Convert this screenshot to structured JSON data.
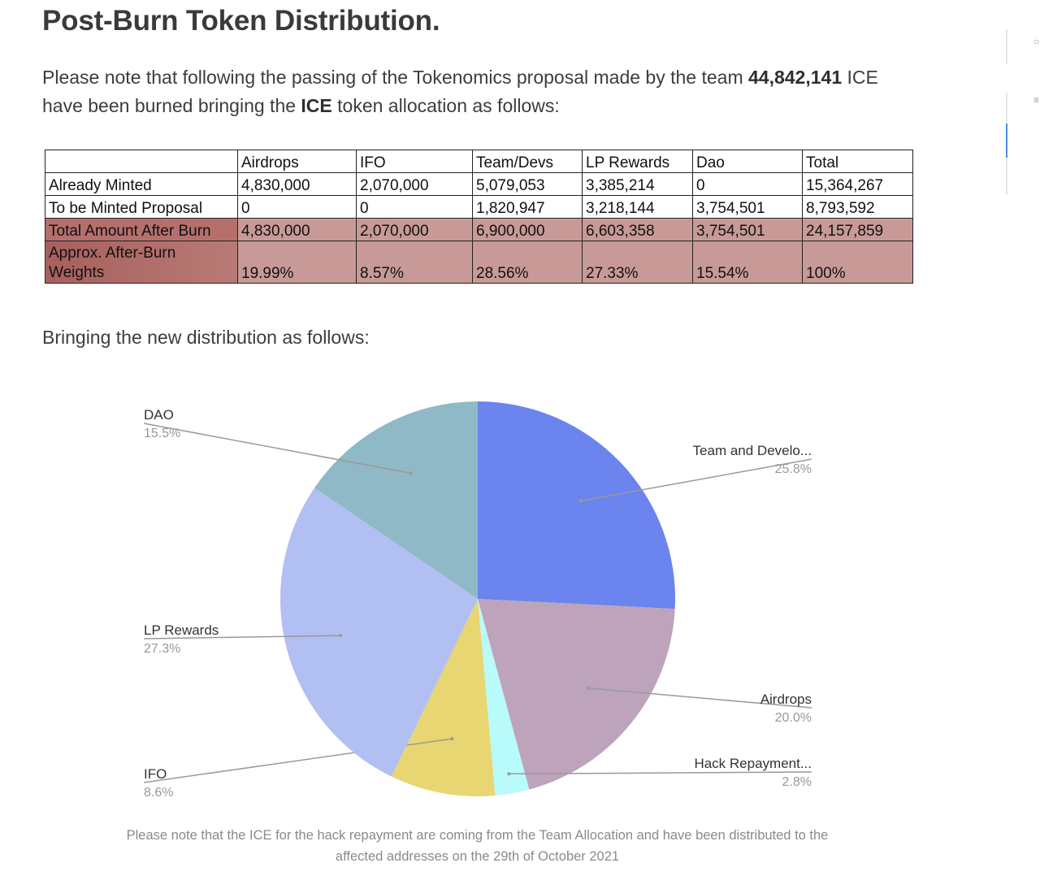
{
  "article": {
    "title": "Post-Burn Token Distribution.",
    "intro_before": "Please note that following the passing of the Tokenomics proposal made by the team ",
    "intro_burn_amount": "44,842,141",
    "intro_mid": " ICE have been burned bringing the ",
    "intro_token": "ICE",
    "intro_after": " token allocation as follows:",
    "subheading": "Bringing the new distribution as follows:",
    "caption": "Please note that the ICE for the hack repayment are coming from the Team Allocation and have been distributed to the affected addresses on the 29th of October 2021"
  },
  "table": {
    "headers": [
      "",
      "Airdrops",
      "IFO",
      "Team/Devs",
      "LP Rewards",
      "Dao",
      "Total"
    ],
    "rows": [
      {
        "label": "Already Minted",
        "cells": [
          "4,830,000",
          "2,070,000",
          "5,079,053",
          "3,385,214",
          "0",
          "15,364,267"
        ]
      },
      {
        "label": "To be Minted Proposal",
        "cells": [
          "0",
          "0",
          "1,820,947",
          "3,218,144",
          "3,754,501",
          "8,793,592"
        ]
      },
      {
        "label": "Total Amount After Burn",
        "cells": [
          "4,830,000",
          "2,070,000",
          "6,900,000",
          "6,603,358",
          "3,754,501",
          "24,157,859"
        ]
      },
      {
        "label": "Approx. After-Burn Weights",
        "cells": [
          "19.99%",
          "8.57%",
          "28.56%",
          "27.33%",
          "15.54%",
          "100%"
        ]
      }
    ]
  },
  "chart_data": {
    "type": "pie",
    "title": "",
    "start_angle_deg": 0,
    "direction": "clockwise",
    "slices": [
      {
        "label": "Team and Develo...",
        "value": 25.8,
        "pct_label": "25.8%",
        "color": "#6b84ee",
        "label_side": "right"
      },
      {
        "label": "Airdrops",
        "value": 20.0,
        "pct_label": "20.0%",
        "color": "#bda3bb",
        "label_side": "right"
      },
      {
        "label": "Hack Repayment...",
        "value": 2.8,
        "pct_label": "2.8%",
        "color": "#b9fafa",
        "label_side": "right"
      },
      {
        "label": "IFO",
        "value": 8.6,
        "pct_label": "8.6%",
        "color": "#e8d672",
        "label_side": "left"
      },
      {
        "label": "LP Rewards",
        "value": 27.3,
        "pct_label": "27.3%",
        "color": "#b2bff2",
        "label_side": "left"
      },
      {
        "label": "DAO",
        "value": 15.5,
        "pct_label": "15.5%",
        "color": "#8fb9c6",
        "label_side": "left"
      }
    ]
  },
  "colors": {
    "burn_row": "#c79a97",
    "burn_label": "#b5706c",
    "text": "#3d3d3d",
    "caption": "#8a8a8a",
    "leader_line": "#9a9a9a"
  }
}
